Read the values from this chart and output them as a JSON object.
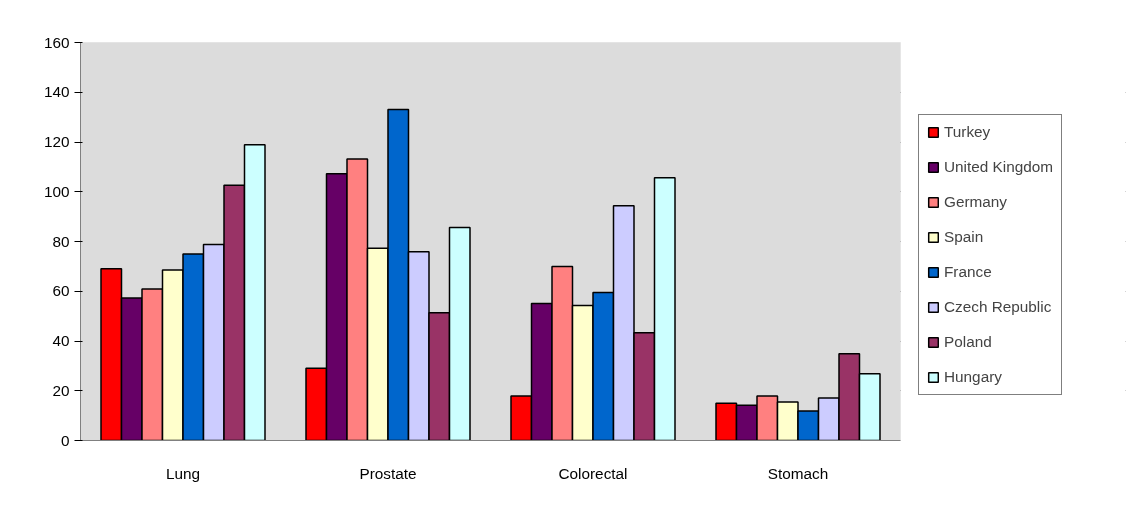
{
  "chart_data": {
    "type": "bar",
    "categories": [
      "Lung",
      "Prostate",
      "Colorectal",
      "Stomach"
    ],
    "series": [
      {
        "name": "Turkey",
        "color": "#ff0000",
        "values": [
          69,
          29,
          17.9,
          15
        ]
      },
      {
        "name": "United Kingdom",
        "color": "#660066",
        "values": [
          57.3,
          107.2,
          55.1,
          14.2
        ]
      },
      {
        "name": "Germany",
        "color": "#ff8080",
        "values": [
          60.9,
          113.2,
          70,
          17.9
        ]
      },
      {
        "name": "Spain",
        "color": "#ffffcc",
        "values": [
          68.5,
          77.3,
          54.3,
          15.5
        ]
      },
      {
        "name": "France",
        "color": "#0066cc",
        "values": [
          75,
          133.1,
          59.5,
          11.9
        ]
      },
      {
        "name": "Czech Republic",
        "color": "#ccccff",
        "values": [
          78.8,
          75.9,
          94.4,
          17.1
        ]
      },
      {
        "name": "Poland",
        "color": "#993366",
        "values": [
          102.6,
          51.4,
          43.3,
          34.9
        ]
      },
      {
        "name": "Hungary",
        "color": "#ccffff",
        "values": [
          118.9,
          85.6,
          105.6,
          26.8
        ]
      }
    ],
    "ylim": [
      0,
      160
    ],
    "yticks": [
      0,
      20,
      40,
      60,
      80,
      100,
      120,
      140,
      160
    ],
    "grid": "y",
    "legend": "right"
  }
}
